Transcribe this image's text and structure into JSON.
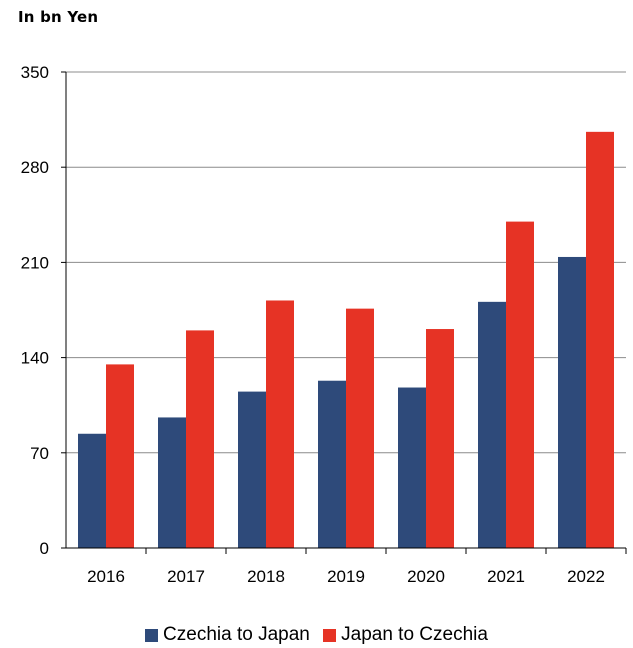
{
  "unit_label": "In bn Yen",
  "chart_data": {
    "type": "bar",
    "categories": [
      "2016",
      "2017",
      "2018",
      "2019",
      "2020",
      "2021",
      "2022"
    ],
    "series": [
      {
        "name": "Czechia to Japan",
        "color": "#2e4a7a",
        "values": [
          84,
          96,
          115,
          123,
          118,
          181,
          214
        ]
      },
      {
        "name": "Japan to Czechia",
        "color": "#e63325",
        "values": [
          135,
          160,
          182,
          176,
          161,
          240,
          306
        ]
      }
    ],
    "title": "",
    "xlabel": "",
    "ylabel": "In bn Yen",
    "ylim": [
      0,
      350
    ],
    "yticks": [
      0,
      70,
      140,
      210,
      280,
      350
    ],
    "grid": true,
    "legend_position": "bottom"
  }
}
